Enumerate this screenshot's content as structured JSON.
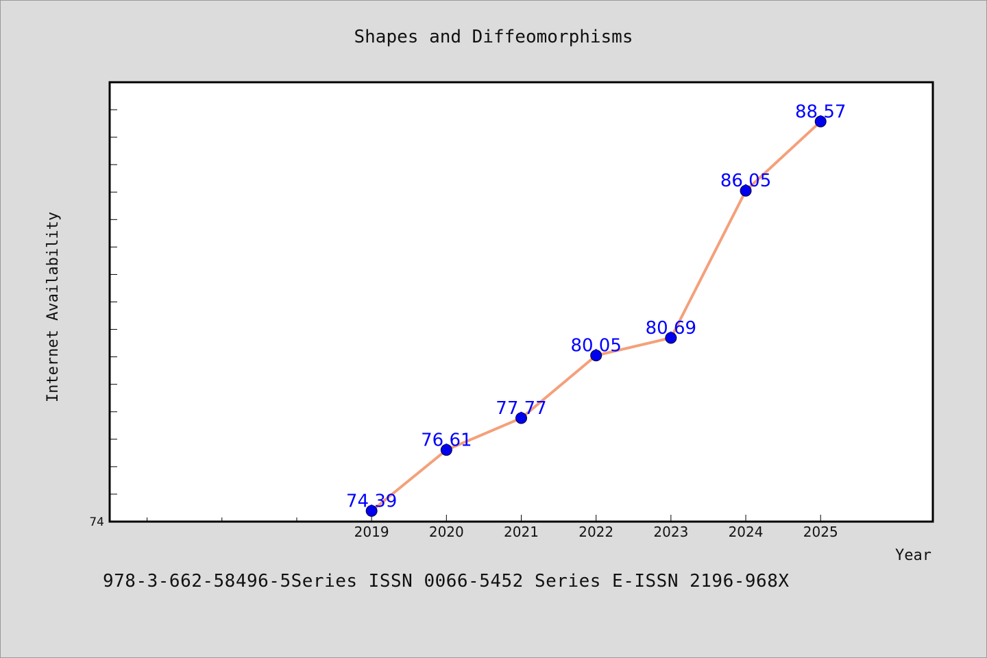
{
  "footer": {
    "text": "978-3-662-58496-5Series ISSN 0066-5452 Series E-ISSN 2196-968X"
  },
  "colors": {
    "background": "#dcdcdc",
    "plot_background": "#ffffff",
    "line": "#f4a07a",
    "marker": "#0000ee",
    "data_label": "#0000ff",
    "text": "#111111"
  },
  "chart_data": {
    "type": "line",
    "title": "Shapes and Diffeomorphisms",
    "xlabel": "Year",
    "ylabel": "Internet Availability",
    "categories": [
      "2019",
      "2020",
      "2021",
      "2022",
      "2023",
      "2024",
      "2025"
    ],
    "series": [
      {
        "values": [
          74.39,
          76.61,
          77.77,
          80.05,
          80.69,
          86.05,
          88.57
        ]
      }
    ],
    "data_labels": [
      "74.39",
      "76.61",
      "77.77",
      "80.05",
      "80.69",
      "86.05",
      "88.57"
    ],
    "x_range": [
      2015.5,
      2026.5
    ],
    "ylim": [
      74,
      90
    ],
    "y_tick_labels": [
      "74"
    ],
    "y_minor_step": 1,
    "x_minor_ticks": [
      2016,
      2017,
      2018
    ],
    "grid": false,
    "legend": "none",
    "markers": true
  }
}
